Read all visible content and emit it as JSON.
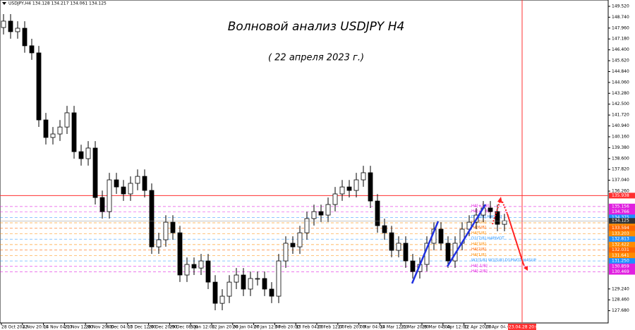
{
  "chart_data": {
    "type": "candlestick",
    "header": "USDJPY,H4  134.128 134.217 134.061 134.125",
    "title": "Волновой анализ USDJPY H4",
    "subtitle": "( 22 апреля 2023 г.)",
    "x_labels": [
      "28 Oct 2022",
      "4 Nov 20:00",
      "14 Nov 04:00",
      "21 Nov 12:00",
      "28 Nov 20:00",
      "6 Dec 04:00",
      "13 Dec 12:00",
      "20 Dec 20:00",
      "29 Dec 08:00",
      "5 Jan 12:00",
      "12 Jan 20:00",
      "20 Jan 04:00",
      "27 Jan 12:00",
      "3 Feb 20:00",
      "13 Feb 04:00",
      "20 Feb 12:00",
      "27 Feb 20:00",
      "7 Mar 04:00",
      "14 Mar 12:00",
      "21 Mar 20:00",
      "29 Mar 04:00",
      "5 Apr 12:00",
      "12 Apr 20:00",
      "20 Apr 04:00"
    ],
    "forecast_date": "2023.04.28 20:00",
    "open": [
      148.0,
      148.46,
      147.7,
      147.95,
      146.69,
      146.18,
      141.37,
      140.11,
      140.36,
      140.86,
      141.88,
      139.09,
      138.59,
      139.35,
      135.8,
      134.79,
      137.07,
      136.56,
      136.06,
      136.82,
      137.32,
      136.31,
      132.26,
      132.77,
      134.03,
      133.27,
      130.24,
      131.0,
      130.74,
      131.25,
      129.73,
      128.21,
      128.72,
      129.73,
      130.24,
      129.23,
      129.99,
      129.99,
      129.23,
      128.72,
      131.25,
      132.52,
      132.26,
      133.27,
      134.29,
      134.79,
      134.54,
      135.3,
      136.06,
      136.56,
      136.31,
      137.07,
      137.58,
      135.55,
      133.78,
      133.27,
      132.01,
      132.52,
      131.25,
      130.49,
      131.0,
      132.52,
      133.53,
      132.52,
      131.25,
      132.52,
      133.53,
      134.03,
      134.54,
      135.05,
      134.79,
      133.88
    ],
    "high": [
      148.96,
      148.96,
      148.45,
      148.45,
      147.19,
      146.68,
      141.87,
      140.86,
      141.36,
      142.38,
      142.38,
      139.59,
      139.85,
      139.85,
      136.3,
      137.57,
      137.57,
      137.06,
      137.32,
      137.82,
      137.82,
      136.81,
      133.27,
      134.53,
      134.53,
      133.77,
      131.5,
      131.5,
      131.75,
      131.75,
      130.23,
      129.22,
      130.23,
      130.74,
      130.74,
      130.49,
      130.49,
      130.49,
      129.73,
      131.75,
      133.02,
      133.02,
      133.77,
      134.79,
      135.29,
      135.29,
      135.8,
      136.56,
      137.06,
      137.06,
      137.57,
      138.08,
      138.08,
      136.05,
      134.28,
      133.77,
      133.02,
      133.02,
      131.75,
      131.5,
      133.02,
      134.03,
      134.03,
      133.02,
      133.02,
      134.03,
      134.53,
      135.04,
      135.55,
      135.55,
      135.29,
      134.63
    ],
    "low": [
      147.5,
      147.2,
      147.2,
      146.19,
      145.68,
      140.87,
      139.61,
      139.61,
      139.86,
      140.36,
      138.59,
      138.09,
      138.09,
      135.3,
      134.29,
      134.29,
      136.06,
      135.56,
      135.56,
      136.32,
      135.81,
      131.76,
      131.76,
      132.27,
      132.77,
      129.74,
      129.74,
      130.24,
      130.24,
      129.23,
      127.71,
      127.71,
      128.22,
      129.23,
      128.73,
      128.73,
      129.49,
      128.73,
      128.22,
      128.22,
      130.75,
      131.76,
      131.76,
      132.77,
      133.79,
      134.04,
      134.04,
      134.8,
      135.56,
      135.81,
      135.81,
      136.57,
      135.05,
      133.28,
      132.77,
      131.51,
      131.51,
      130.75,
      129.99,
      129.99,
      130.5,
      132.02,
      132.02,
      130.75,
      130.75,
      132.02,
      133.03,
      133.53,
      134.04,
      134.29,
      133.38,
      133.38
    ],
    "close": [
      148.46,
      147.7,
      147.95,
      146.69,
      146.18,
      141.37,
      140.11,
      140.36,
      140.86,
      141.88,
      139.09,
      138.59,
      139.35,
      135.8,
      134.79,
      137.07,
      136.56,
      136.06,
      136.82,
      137.32,
      136.31,
      132.26,
      132.77,
      134.03,
      133.27,
      130.24,
      131.0,
      130.74,
      131.25,
      129.73,
      128.21,
      128.72,
      129.73,
      130.24,
      129.23,
      129.99,
      129.99,
      129.23,
      128.72,
      131.25,
      132.52,
      132.26,
      133.27,
      134.29,
      134.79,
      134.54,
      135.3,
      136.06,
      136.56,
      136.31,
      137.07,
      137.58,
      135.55,
      133.78,
      133.27,
      132.01,
      132.52,
      131.25,
      130.49,
      131.0,
      132.52,
      133.53,
      132.52,
      131.25,
      132.52,
      133.53,
      134.03,
      134.54,
      135.05,
      134.79,
      133.88,
      134.13
    ],
    "up_color": "#ffffff",
    "down_color": "#000000",
    "ylim": [
      126.8,
      149.975
    ],
    "yticks": [
      {
        "value": 149.52,
        "label": "149.520"
      },
      {
        "value": 148.74,
        "label": "148.740"
      },
      {
        "value": 147.96,
        "label": "147.960"
      },
      {
        "value": 147.18,
        "label": "147.180"
      },
      {
        "value": 146.4,
        "label": "146.400"
      },
      {
        "value": 145.62,
        "label": "145.620"
      },
      {
        "value": 144.84,
        "label": "144.840"
      },
      {
        "value": 144.06,
        "label": "144.060"
      },
      {
        "value": 143.28,
        "label": "143.280"
      },
      {
        "value": 142.5,
        "label": "142.500"
      },
      {
        "value": 141.72,
        "label": "141.720"
      },
      {
        "value": 140.94,
        "label": "140.940"
      },
      {
        "value": 140.16,
        "label": "140.160"
      },
      {
        "value": 139.38,
        "label": "139.380"
      },
      {
        "value": 138.6,
        "label": "138.600"
      },
      {
        "value": 137.82,
        "label": "137.820"
      },
      {
        "value": 137.04,
        "label": "137.040"
      },
      {
        "value": 136.26,
        "label": "136.260"
      },
      {
        "value": 129.24,
        "label": "129.240"
      },
      {
        "value": 128.46,
        "label": "128.460"
      },
      {
        "value": 127.68,
        "label": "127.680"
      }
    ],
    "resistance": {
      "value": 135.938,
      "label": "135.938",
      "color": "#ff3030"
    },
    "last_price": 134.125,
    "levels": [
      {
        "value": 135.156,
        "label": "135.156",
        "name": "H4[+2/8]",
        "color": "#e020e0"
      },
      {
        "value": 134.766,
        "label": "134.766",
        "name": "H4[+1/8]",
        "color": "#e020e0"
      },
      {
        "value": 134.375,
        "label": "134.375",
        "name": "D1[8/8] H4[8/8]",
        "color": "#1e90ff"
      },
      {
        "value": 133.984,
        "label": "133.984",
        "name": "H4[7/8]",
        "color": "#ff8c00"
      },
      {
        "value": 133.594,
        "label": "133.594",
        "name": "H4[6/8]",
        "color": "#ff6600"
      },
      {
        "value": 133.203,
        "label": "133.203",
        "name": "H4[5/8]",
        "color": "#ff8c00"
      },
      {
        "value": 132.813,
        "label": "132.813",
        "name": "D1[7/8] H4PIVOT",
        "color": "#1e90ff"
      },
      {
        "value": 132.422,
        "label": "132.422",
        "name": "H4[3/8]",
        "color": "#ff8c00"
      },
      {
        "value": 132.031,
        "label": "132.031",
        "name": "H4[2/8]",
        "color": "#ff6600"
      },
      {
        "value": 131.641,
        "label": "131.641",
        "name": "H4[1/8]",
        "color": "#ff8c00"
      },
      {
        "value": 131.25,
        "label": "131.250",
        "name": "W1[5/8] W1[5/8] D1PIVOT H4SUP",
        "color": "#1e90ff"
      },
      {
        "value": 130.859,
        "label": "130.859",
        "name": "H4[-1/8]",
        "color": "#e020e0"
      },
      {
        "value": 130.469,
        "label": "130.469",
        "name": "H4[-2/8]",
        "color": "#e020e0"
      }
    ]
  }
}
